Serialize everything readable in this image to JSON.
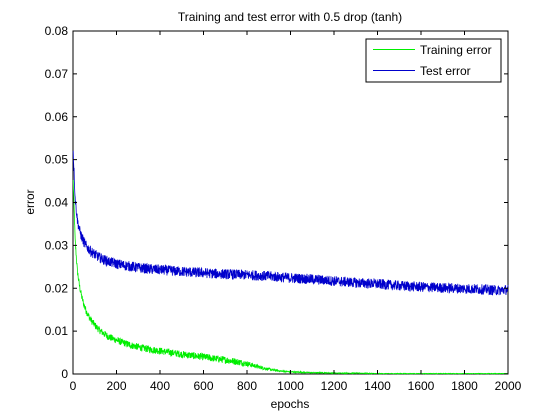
{
  "chart_data": {
    "type": "line",
    "title": "Training and test error with 0.5 drop (tanh)",
    "xlabel": "epochs",
    "ylabel": "error",
    "xlim": [
      0,
      2000
    ],
    "ylim": [
      0,
      0.08
    ],
    "xticks": [
      0,
      200,
      400,
      600,
      800,
      1000,
      1200,
      1400,
      1600,
      1800,
      2000
    ],
    "yticks": [
      0,
      0.01,
      0.02,
      0.03,
      0.04,
      0.05,
      0.06,
      0.07,
      0.08
    ],
    "xtick_labels": [
      "0",
      "200",
      "400",
      "600",
      "800",
      "1000",
      "1200",
      "1400",
      "1600",
      "1800",
      "2000"
    ],
    "ytick_labels": [
      "0",
      "0.01",
      "0.02",
      "0.03",
      "0.04",
      "0.05",
      "0.06",
      "0.07",
      "0.08"
    ],
    "grid": false,
    "legend_position": "top-right",
    "series": [
      {
        "name": "Training error",
        "color": "#00ee00",
        "x": [
          1,
          10,
          20,
          30,
          40,
          50,
          60,
          70,
          80,
          90,
          100,
          120,
          140,
          160,
          180,
          200,
          225,
          250,
          275,
          300,
          325,
          350,
          375,
          400,
          450,
          500,
          550,
          600,
          650,
          700,
          750,
          800,
          850,
          900,
          950,
          1000,
          1050,
          1100,
          1150,
          1200,
          1300,
          1400,
          1500,
          1600,
          1700,
          1800,
          1900,
          2000
        ],
        "values": [
          0.045,
          0.031,
          0.024,
          0.0205,
          0.018,
          0.0162,
          0.0148,
          0.0137,
          0.0128,
          0.0121,
          0.0114,
          0.0103,
          0.0095,
          0.0088,
          0.0083,
          0.0079,
          0.0074,
          0.007,
          0.0066,
          0.0063,
          0.006,
          0.0058,
          0.0056,
          0.0054,
          0.005,
          0.0046,
          0.0043,
          0.004,
          0.0036,
          0.0033,
          0.0029,
          0.0024,
          0.0017,
          0.0011,
          0.0007,
          0.0005,
          0.0004,
          0.0003,
          0.0003,
          0.0002,
          0.0002,
          0.0001,
          0.0001,
          0.0001,
          0.0001,
          0.0001,
          0.0001,
          0.0001
        ]
      },
      {
        "name": "Test error",
        "color": "#0000cc",
        "x": [
          1,
          10,
          20,
          30,
          40,
          50,
          60,
          80,
          100,
          120,
          140,
          160,
          180,
          200,
          250,
          300,
          350,
          400,
          450,
          500,
          550,
          600,
          650,
          700,
          750,
          800,
          850,
          900,
          950,
          1000,
          1100,
          1200,
          1300,
          1400,
          1500,
          1600,
          1700,
          1800,
          1900,
          1950,
          2000
        ],
        "values": [
          0.052,
          0.041,
          0.036,
          0.0335,
          0.032,
          0.0308,
          0.0299,
          0.0287,
          0.0279,
          0.0272,
          0.0267,
          0.0263,
          0.026,
          0.0257,
          0.0252,
          0.0248,
          0.0245,
          0.0243,
          0.0241,
          0.0239,
          0.0237,
          0.0236,
          0.0234,
          0.0233,
          0.0232,
          0.0231,
          0.023,
          0.0228,
          0.0226,
          0.0224,
          0.0221,
          0.0217,
          0.0213,
          0.021,
          0.0206,
          0.0203,
          0.0201,
          0.0199,
          0.0197,
          0.0195,
          0.0197
        ]
      }
    ]
  }
}
